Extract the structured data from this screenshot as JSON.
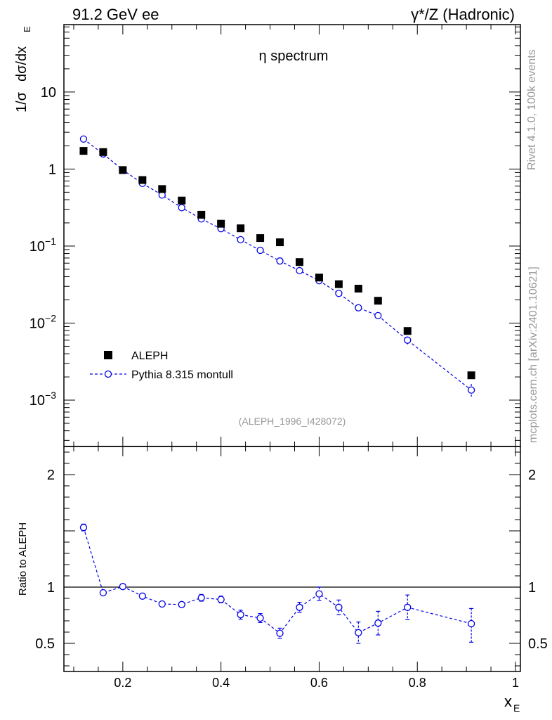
{
  "header": {
    "left": "91.2 GeV ee",
    "right": "γ*/Z (Hadronic)"
  },
  "side_labels": {
    "rivet": "Rivet 4.1.0,  100k events",
    "mcplots": "mcplots.cern.ch [arXiv:2401.10621]"
  },
  "colors": {
    "data": "#000000",
    "mc": "#0000e6",
    "grey": "#999999"
  },
  "chart_data": [
    {
      "type": "scatter",
      "title": "η spectrum",
      "ylabel_parts": [
        "1/σ",
        "dσ/dx",
        "E"
      ],
      "xlabel_parts": [
        "x",
        "E"
      ],
      "yscale": "log",
      "xlim": [
        0.08,
        1.01
      ],
      "ylim": [
        0.00025,
        75
      ],
      "ytick_labels": [
        {
          "value": 10,
          "mantissa": "10",
          "exp": ""
        },
        {
          "value": 1,
          "mantissa": "1",
          "exp": ""
        },
        {
          "value": 0.1,
          "mantissa": "10",
          "exp": "−1"
        },
        {
          "value": 0.01,
          "mantissa": "10",
          "exp": "−2"
        },
        {
          "value": 0.001,
          "mantissa": "10",
          "exp": "−3"
        }
      ],
      "watermark": "(ALEPH_1996_I428072)",
      "legend_position": "bottom-left",
      "series": [
        {
          "name": "ALEPH",
          "style": "black-square",
          "x": [
            0.12,
            0.16,
            0.2,
            0.24,
            0.28,
            0.32,
            0.36,
            0.4,
            0.44,
            0.48,
            0.52,
            0.56,
            0.6,
            0.64,
            0.68,
            0.72,
            0.78,
            0.91
          ],
          "values": [
            1.72,
            1.66,
            0.97,
            0.72,
            0.55,
            0.39,
            0.255,
            0.195,
            0.17,
            0.127,
            0.112,
            0.062,
            0.039,
            0.032,
            0.028,
            0.0195,
            0.0079,
            0.0021
          ]
        },
        {
          "name": "Pythia 8.315 montull",
          "style": "blue-open-circle-dashed",
          "x": [
            0.12,
            0.16,
            0.2,
            0.24,
            0.28,
            0.32,
            0.36,
            0.4,
            0.44,
            0.48,
            0.52,
            0.56,
            0.6,
            0.64,
            0.68,
            0.72,
            0.78,
            0.91
          ],
          "values": [
            2.45,
            1.57,
            0.975,
            0.65,
            0.46,
            0.315,
            0.225,
            0.168,
            0.121,
            0.088,
            0.064,
            0.048,
            0.0355,
            0.0243,
            0.0158,
            0.0125,
            0.006,
            0.00135
          ],
          "err_lo": [
            2.4,
            1.54,
            0.96,
            0.64,
            0.45,
            0.31,
            0.217,
            0.16,
            0.114,
            0.083,
            0.0595,
            0.045,
            0.0332,
            0.0225,
            0.0143,
            0.0112,
            0.0053,
            0.00108
          ],
          "err_hi": [
            2.5,
            1.6,
            0.99,
            0.66,
            0.47,
            0.32,
            0.233,
            0.176,
            0.128,
            0.093,
            0.0685,
            0.051,
            0.0378,
            0.0261,
            0.0173,
            0.0138,
            0.0067,
            0.00162
          ]
        }
      ]
    },
    {
      "type": "scatter",
      "ylabel": "Ratio to ALEPH",
      "xlabel_parts": [
        "x",
        "E"
      ],
      "xlim": [
        0.08,
        1.01
      ],
      "ylim": [
        0.25,
        2.25
      ],
      "ytick_labels": [
        "2",
        "1",
        "0.5"
      ],
      "ytick_values": [
        2,
        1,
        0.5
      ],
      "xtick_labels": [
        "0.2",
        "0.4",
        "0.6",
        "0.8",
        "1"
      ],
      "xtick_values": [
        0.2,
        0.4,
        0.6,
        0.8,
        1.0
      ],
      "reference_line": 1,
      "series": [
        {
          "name": "Pythia 8.315 montull / ALEPH",
          "x": [
            0.12,
            0.16,
            0.2,
            0.24,
            0.28,
            0.32,
            0.36,
            0.4,
            0.44,
            0.48,
            0.52,
            0.56,
            0.6,
            0.64,
            0.68,
            0.72,
            0.78,
            0.91
          ],
          "values": [
            1.53,
            0.95,
            1.005,
            0.92,
            0.85,
            0.845,
            0.905,
            0.89,
            0.755,
            0.725,
            0.59,
            0.82,
            0.94,
            0.82,
            0.595,
            0.68,
            0.82,
            0.675
          ],
          "err_lo": [
            1.5,
            0.94,
            0.995,
            0.9,
            0.835,
            0.825,
            0.875,
            0.86,
            0.715,
            0.685,
            0.545,
            0.775,
            0.88,
            0.755,
            0.5,
            0.575,
            0.71,
            0.51
          ],
          "err_hi": [
            1.56,
            0.96,
            1.015,
            0.94,
            0.865,
            0.865,
            0.935,
            0.92,
            0.795,
            0.765,
            0.635,
            0.865,
            1.0,
            0.885,
            0.69,
            0.785,
            0.93,
            0.81
          ]
        }
      ]
    }
  ]
}
